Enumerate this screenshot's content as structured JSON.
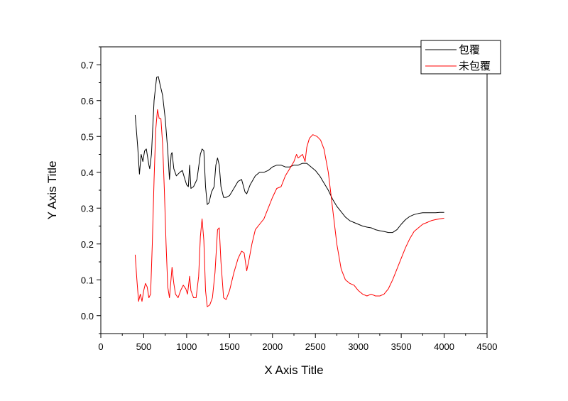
{
  "chart_data": {
    "type": "line",
    "xlabel": "X Axis Title",
    "ylabel": "Y Axis Title",
    "xlim": [
      0,
      4500
    ],
    "ylim": [
      -0.05,
      0.75
    ],
    "xticks": [
      0,
      500,
      1000,
      1500,
      2000,
      2500,
      3000,
      3500,
      4000,
      4500
    ],
    "yticks": [
      0.0,
      0.1,
      0.2,
      0.3,
      0.4,
      0.5,
      0.6,
      0.7
    ],
    "ytick_labels": [
      "0.0",
      "0.1",
      "0.2",
      "0.3",
      "0.4",
      "0.5",
      "0.6",
      "0.7"
    ],
    "grid": false,
    "legend_position": "top-right",
    "series": [
      {
        "name": "包覆",
        "color": "#000000",
        "points": [
          [
            400,
            0.56
          ],
          [
            430,
            0.47
          ],
          [
            450,
            0.395
          ],
          [
            470,
            0.45
          ],
          [
            490,
            0.43
          ],
          [
            510,
            0.46
          ],
          [
            530,
            0.465
          ],
          [
            560,
            0.42
          ],
          [
            570,
            0.41
          ],
          [
            590,
            0.45
          ],
          [
            620,
            0.6
          ],
          [
            650,
            0.665
          ],
          [
            670,
            0.667
          ],
          [
            690,
            0.645
          ],
          [
            720,
            0.615
          ],
          [
            750,
            0.55
          ],
          [
            780,
            0.46
          ],
          [
            800,
            0.38
          ],
          [
            820,
            0.45
          ],
          [
            830,
            0.455
          ],
          [
            850,
            0.41
          ],
          [
            880,
            0.39
          ],
          [
            920,
            0.4
          ],
          [
            950,
            0.405
          ],
          [
            980,
            0.38
          ],
          [
            1000,
            0.365
          ],
          [
            1020,
            0.36
          ],
          [
            1035,
            0.42
          ],
          [
            1050,
            0.355
          ],
          [
            1080,
            0.36
          ],
          [
            1120,
            0.38
          ],
          [
            1160,
            0.45
          ],
          [
            1180,
            0.465
          ],
          [
            1200,
            0.46
          ],
          [
            1220,
            0.36
          ],
          [
            1240,
            0.31
          ],
          [
            1260,
            0.315
          ],
          [
            1290,
            0.345
          ],
          [
            1320,
            0.36
          ],
          [
            1340,
            0.42
          ],
          [
            1360,
            0.44
          ],
          [
            1380,
            0.42
          ],
          [
            1400,
            0.36
          ],
          [
            1430,
            0.33
          ],
          [
            1460,
            0.33
          ],
          [
            1500,
            0.335
          ],
          [
            1550,
            0.355
          ],
          [
            1600,
            0.375
          ],
          [
            1640,
            0.38
          ],
          [
            1680,
            0.345
          ],
          [
            1700,
            0.34
          ],
          [
            1740,
            0.365
          ],
          [
            1800,
            0.39
          ],
          [
            1850,
            0.4
          ],
          [
            1900,
            0.4
          ],
          [
            1950,
            0.405
          ],
          [
            2000,
            0.415
          ],
          [
            2050,
            0.42
          ],
          [
            2100,
            0.42
          ],
          [
            2150,
            0.415
          ],
          [
            2200,
            0.415
          ],
          [
            2250,
            0.42
          ],
          [
            2300,
            0.42
          ],
          [
            2350,
            0.425
          ],
          [
            2400,
            0.425
          ],
          [
            2450,
            0.415
          ],
          [
            2500,
            0.405
          ],
          [
            2550,
            0.39
          ],
          [
            2600,
            0.37
          ],
          [
            2650,
            0.35
          ],
          [
            2700,
            0.325
          ],
          [
            2750,
            0.305
          ],
          [
            2800,
            0.29
          ],
          [
            2850,
            0.275
          ],
          [
            2900,
            0.265
          ],
          [
            2950,
            0.26
          ],
          [
            3000,
            0.255
          ],
          [
            3050,
            0.25
          ],
          [
            3100,
            0.247
          ],
          [
            3150,
            0.245
          ],
          [
            3200,
            0.24
          ],
          [
            3250,
            0.237
          ],
          [
            3300,
            0.235
          ],
          [
            3350,
            0.232
          ],
          [
            3400,
            0.232
          ],
          [
            3450,
            0.24
          ],
          [
            3500,
            0.255
          ],
          [
            3550,
            0.268
          ],
          [
            3600,
            0.277
          ],
          [
            3650,
            0.282
          ],
          [
            3700,
            0.285
          ],
          [
            3750,
            0.287
          ],
          [
            3800,
            0.287
          ],
          [
            3850,
            0.287
          ],
          [
            3900,
            0.287
          ],
          [
            3950,
            0.288
          ],
          [
            4000,
            0.288
          ]
        ]
      },
      {
        "name": "未包覆",
        "color": "#ff0000",
        "points": [
          [
            400,
            0.17
          ],
          [
            420,
            0.1
          ],
          [
            440,
            0.04
          ],
          [
            460,
            0.06
          ],
          [
            480,
            0.04
          ],
          [
            500,
            0.07
          ],
          [
            520,
            0.09
          ],
          [
            540,
            0.08
          ],
          [
            560,
            0.05
          ],
          [
            580,
            0.06
          ],
          [
            600,
            0.2
          ],
          [
            620,
            0.38
          ],
          [
            640,
            0.52
          ],
          [
            660,
            0.575
          ],
          [
            680,
            0.55
          ],
          [
            700,
            0.55
          ],
          [
            720,
            0.48
          ],
          [
            740,
            0.35
          ],
          [
            760,
            0.2
          ],
          [
            780,
            0.08
          ],
          [
            800,
            0.05
          ],
          [
            830,
            0.135
          ],
          [
            850,
            0.09
          ],
          [
            870,
            0.06
          ],
          [
            900,
            0.05
          ],
          [
            930,
            0.07
          ],
          [
            960,
            0.085
          ],
          [
            990,
            0.075
          ],
          [
            1010,
            0.06
          ],
          [
            1035,
            0.11
          ],
          [
            1050,
            0.07
          ],
          [
            1080,
            0.05
          ],
          [
            1110,
            0.05
          ],
          [
            1140,
            0.11
          ],
          [
            1160,
            0.22
          ],
          [
            1180,
            0.27
          ],
          [
            1200,
            0.21
          ],
          [
            1220,
            0.07
          ],
          [
            1240,
            0.025
          ],
          [
            1270,
            0.03
          ],
          [
            1300,
            0.05
          ],
          [
            1330,
            0.12
          ],
          [
            1360,
            0.24
          ],
          [
            1380,
            0.245
          ],
          [
            1400,
            0.15
          ],
          [
            1430,
            0.05
          ],
          [
            1460,
            0.045
          ],
          [
            1500,
            0.07
          ],
          [
            1550,
            0.12
          ],
          [
            1600,
            0.16
          ],
          [
            1640,
            0.18
          ],
          [
            1670,
            0.175
          ],
          [
            1700,
            0.125
          ],
          [
            1730,
            0.16
          ],
          [
            1760,
            0.2
          ],
          [
            1800,
            0.24
          ],
          [
            1850,
            0.255
          ],
          [
            1900,
            0.27
          ],
          [
            1950,
            0.3
          ],
          [
            2000,
            0.33
          ],
          [
            2050,
            0.355
          ],
          [
            2100,
            0.36
          ],
          [
            2150,
            0.39
          ],
          [
            2200,
            0.41
          ],
          [
            2250,
            0.43
          ],
          [
            2280,
            0.45
          ],
          [
            2300,
            0.44
          ],
          [
            2350,
            0.45
          ],
          [
            2380,
            0.43
          ],
          [
            2400,
            0.47
          ],
          [
            2430,
            0.495
          ],
          [
            2470,
            0.505
          ],
          [
            2520,
            0.5
          ],
          [
            2560,
            0.49
          ],
          [
            2600,
            0.465
          ],
          [
            2650,
            0.4
          ],
          [
            2700,
            0.3
          ],
          [
            2750,
            0.2
          ],
          [
            2800,
            0.13
          ],
          [
            2850,
            0.1
          ],
          [
            2900,
            0.09
          ],
          [
            2950,
            0.085
          ],
          [
            3000,
            0.07
          ],
          [
            3050,
            0.06
          ],
          [
            3100,
            0.055
          ],
          [
            3150,
            0.06
          ],
          [
            3200,
            0.055
          ],
          [
            3250,
            0.055
          ],
          [
            3300,
            0.06
          ],
          [
            3350,
            0.075
          ],
          [
            3400,
            0.1
          ],
          [
            3450,
            0.13
          ],
          [
            3500,
            0.16
          ],
          [
            3550,
            0.19
          ],
          [
            3600,
            0.215
          ],
          [
            3650,
            0.235
          ],
          [
            3700,
            0.245
          ],
          [
            3750,
            0.255
          ],
          [
            3800,
            0.26
          ],
          [
            3850,
            0.265
          ],
          [
            3900,
            0.268
          ],
          [
            3950,
            0.27
          ],
          [
            4000,
            0.272
          ]
        ]
      }
    ]
  }
}
